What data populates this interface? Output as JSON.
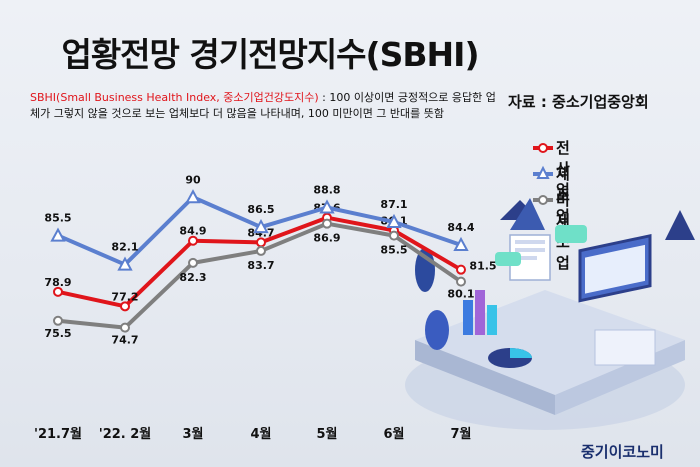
{
  "title": "업황전망 경기전망지수(SBHI)",
  "source": "자료 : 중소기업중앙회",
  "description": {
    "highlight": "SBHI(Small Business Health Index, 중소기업건강도지수)",
    "text": " : 100 이상이면 긍정적으로 응답한 업체가 그렇지 않을 것으로 보는 업체보다 더 많음을 나타내며, 100 미만이면 그 반대를 뜻함"
  },
  "brand": "중기이코노미",
  "colors": {
    "전산업": "#e0151b",
    "제조업": "#5b7fcf",
    "비제조업": "#7f7f7f"
  },
  "chart_data": {
    "type": "line",
    "categories": [
      "'21.7월",
      "'22. 2월",
      "3월",
      "4월",
      "5월",
      "6월",
      "7월"
    ],
    "series": [
      {
        "name": "전산업",
        "values": [
          78.9,
          77.2,
          84.9,
          84.7,
          87.6,
          86.1,
          81.5
        ],
        "color": "#e0151b",
        "marker": "circle"
      },
      {
        "name": "제조업",
        "values": [
          85.5,
          82.1,
          90,
          86.5,
          88.8,
          87.1,
          84.4
        ],
        "color": "#5b7fcf",
        "marker": "triangle"
      },
      {
        "name": "비제조업",
        "values": [
          75.5,
          74.7,
          82.3,
          83.7,
          86.9,
          85.5,
          80.1
        ],
        "color": "#7f7f7f",
        "marker": "circle"
      }
    ],
    "labels": {
      "전산업": [
        "78.9",
        "77.2",
        "84.9",
        "84.7",
        "87.6",
        "86.1",
        "81.5"
      ],
      "제조업": [
        "85.5",
        "82.1",
        "90",
        "86.5",
        "88.8",
        "87.1",
        "84.4"
      ],
      "비제조업": [
        "75.5",
        "74.7",
        "82.3",
        "83.7",
        "86.9",
        "85.5",
        "80.1"
      ]
    },
    "legend_position": "right",
    "grid": false
  }
}
